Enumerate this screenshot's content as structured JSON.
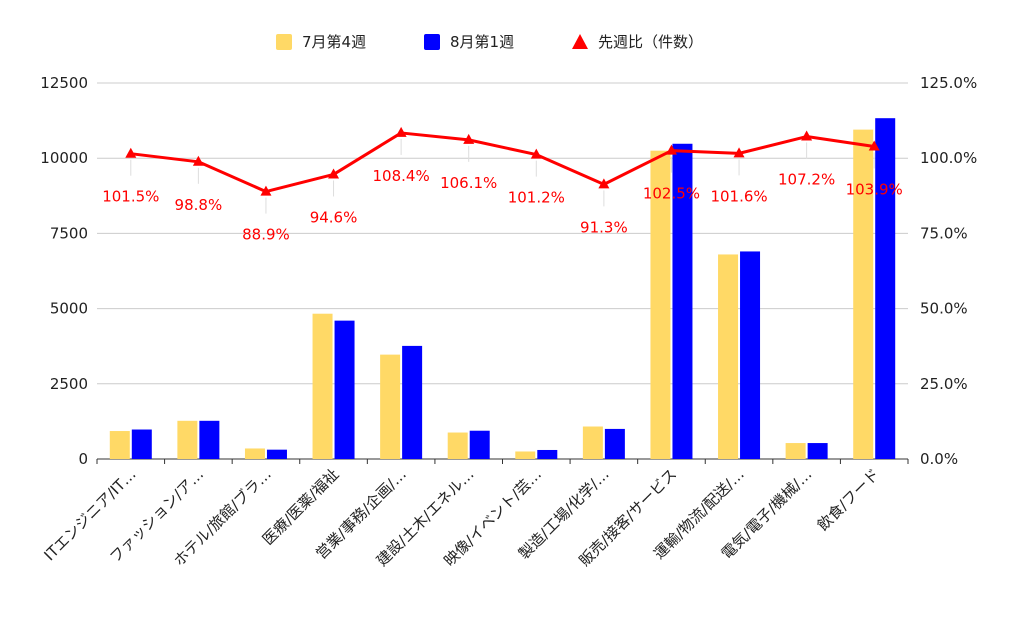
{
  "chart_data": {
    "type": "bar",
    "categories": [
      "ITエンジニア/IT…",
      "ファッション/ア…",
      "ホテル/旅館/ブラ…",
      "医療/医薬/福祉",
      "営業/事務/企画/…",
      "建設/土木/エネル…",
      "映像/イベント/芸…",
      "製造/工場/化学/…",
      "販売/接客/サービス",
      "運輸/物流/配送/…",
      "電気/電子/機械/…",
      "飲食/フード"
    ],
    "series": [
      {
        "name": "7月第4週",
        "type": "bar",
        "axis": "left",
        "color": "#FFD966",
        "values": [
          930,
          1270,
          350,
          4830,
          3470,
          880,
          250,
          1080,
          10250,
          6800,
          530,
          10950
        ]
      },
      {
        "name": "8月第1週",
        "type": "bar",
        "axis": "left",
        "color": "#0000FF",
        "values": [
          980,
          1270,
          310,
          4600,
          3760,
          940,
          300,
          1000,
          10480,
          6900,
          530,
          11330
        ]
      },
      {
        "name": "先週比（件数）",
        "type": "line",
        "axis": "right",
        "color": "#FF0000",
        "marker": "triangle",
        "values": [
          101.5,
          98.8,
          88.9,
          94.6,
          108.4,
          106.1,
          101.2,
          91.3,
          102.5,
          101.6,
          107.2,
          103.9
        ],
        "labels": [
          "101.5%",
          "98.8%",
          "88.9%",
          "94.6%",
          "108.4%",
          "106.1%",
          "101.2%",
          "91.3%",
          "102.5%",
          "101.6%",
          "107.2%",
          "103.9%"
        ]
      }
    ],
    "y_left": {
      "min": 0,
      "max": 12500,
      "ticks": [
        "0",
        "2500",
        "5000",
        "7500",
        "10000",
        "12500"
      ]
    },
    "y_right": {
      "min": 0,
      "max": 125,
      "ticks": [
        "0.0%",
        "25.0%",
        "50.0%",
        "75.0%",
        "100.0%",
        "125.0%"
      ]
    },
    "grid": true,
    "legend": "top-center",
    "title": "",
    "xlabel": "",
    "ylabel": ""
  }
}
